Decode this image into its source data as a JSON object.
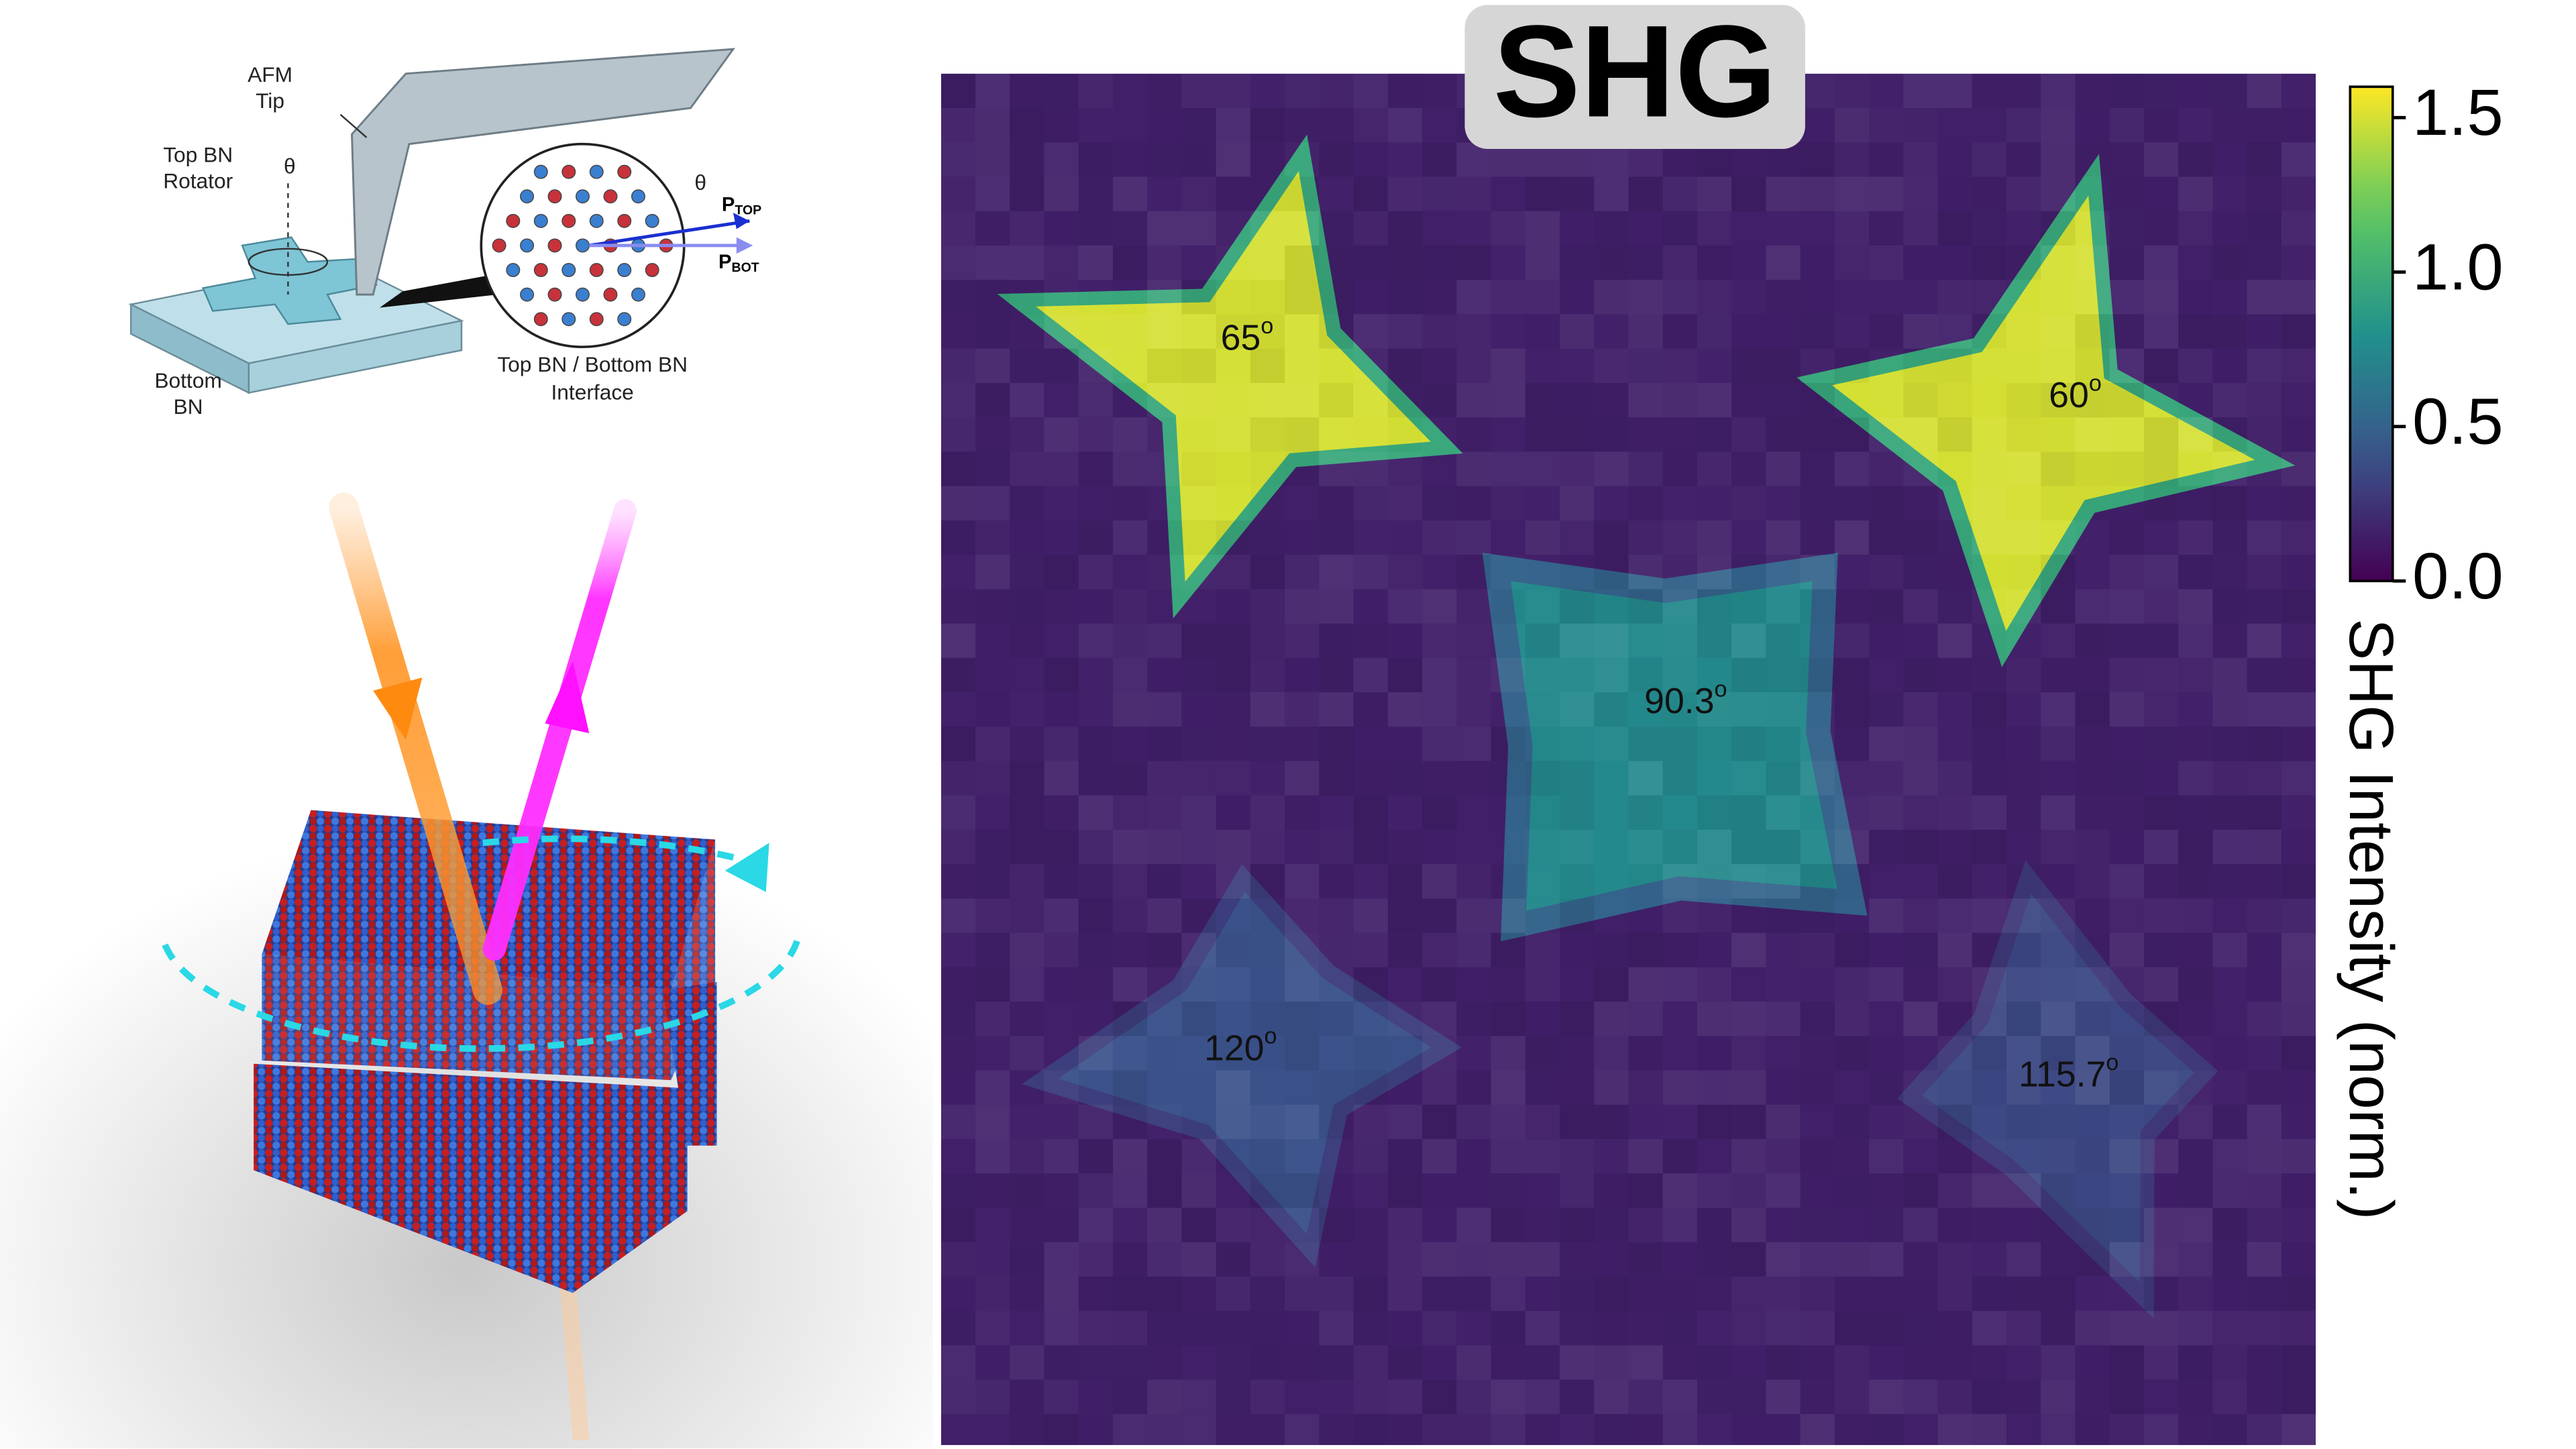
{
  "schematic": {
    "afm_tip": [
      "AFM",
      "Tip"
    ],
    "top_rotator": [
      "Top BN",
      "Rotator"
    ],
    "theta": "θ",
    "bottom_bn": [
      "Bottom",
      "BN"
    ],
    "interface": [
      "Top BN / Bottom BN",
      "Interface"
    ],
    "p_top": {
      "main": "P",
      "sub": "TOP"
    },
    "p_bot": {
      "main": "P",
      "sub": "BOT"
    }
  },
  "chart_data": {
    "type": "heatmap",
    "title": "SHG",
    "degree_mark": "o",
    "background": 0.15,
    "regions": [
      {
        "label": "65",
        "intensity": 1.5
      },
      {
        "label": "60",
        "intensity": 1.5
      },
      {
        "label": "90.3",
        "intensity": 0.75
      },
      {
        "label": "120",
        "intensity": 0.4
      },
      {
        "label": "115.7",
        "intensity": 0.35
      }
    ],
    "colorbar": {
      "label": "SHG Intensity (norm.)",
      "lim": [
        0,
        1.6
      ],
      "ticks": [
        {
          "value": 0,
          "label": "0.0"
        },
        {
          "value": 0.5,
          "label": "0.5"
        },
        {
          "value": 1,
          "label": "1.0"
        },
        {
          "value": 1.5,
          "label": "1.5"
        }
      ]
    }
  }
}
